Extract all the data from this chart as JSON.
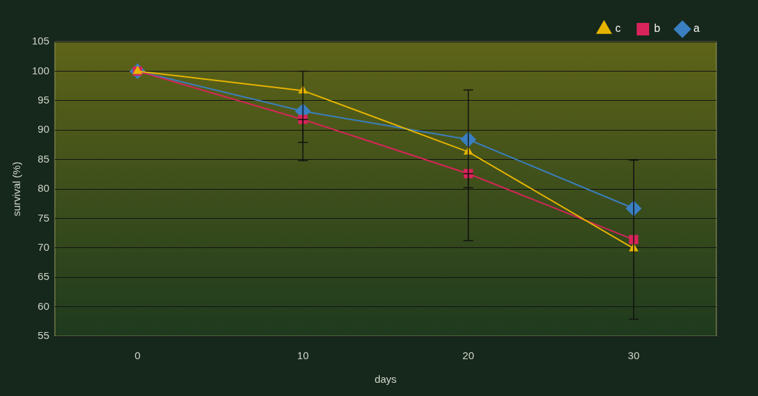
{
  "chart_data": {
    "type": "line",
    "xlabel": "days",
    "ylabel": "survival (%)",
    "categories": [
      "0",
      "10",
      "20",
      "30"
    ],
    "series": [
      {
        "name": "a",
        "color": "#3a7fc0",
        "marker": "diamond",
        "values": [
          100,
          93.2,
          88.4,
          76.7
        ],
        "errors": [
          null,
          [
            84.8,
            100
          ],
          [
            71.2,
            96.8
          ],
          [
            57.9,
            84.9
          ]
        ]
      },
      {
        "name": "b",
        "color": "#d8245a",
        "marker": "square",
        "values": [
          100,
          91.8,
          82.6,
          71.4
        ],
        "errors": [
          null,
          [
            87.9,
            91.8
          ],
          [
            80.2,
            82.6
          ],
          null
        ]
      },
      {
        "name": "c",
        "color": "#e6b400",
        "marker": "triangle",
        "values": [
          100,
          96.7,
          86.3,
          69.9
        ]
      }
    ],
    "ylim": [
      55,
      105
    ],
    "yticks": [
      55,
      60,
      65,
      70,
      75,
      80,
      85,
      90,
      95,
      100,
      105
    ],
    "grid": "y",
    "legend": "top right"
  }
}
